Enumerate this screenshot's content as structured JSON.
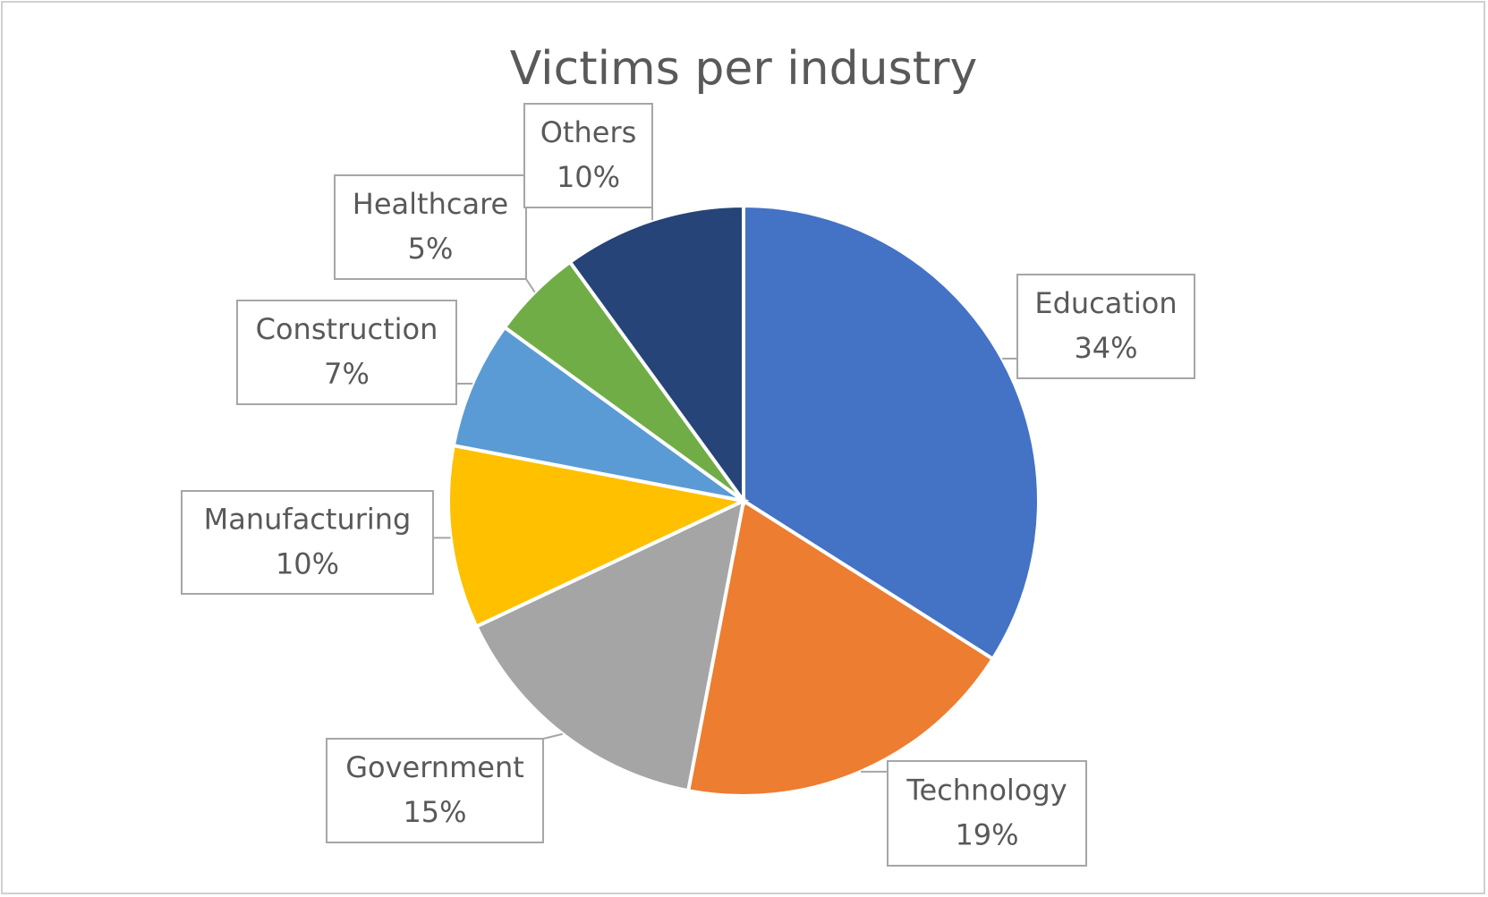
{
  "chart_data": {
    "type": "pie",
    "title": "Victims per industry",
    "categories": [
      "Education",
      "Technology",
      "Government",
      "Manufacturing",
      "Construction",
      "Healthcare",
      "Others"
    ],
    "values": [
      34,
      19,
      15,
      10,
      7,
      5,
      10
    ],
    "value_labels": [
      "34%",
      "19%",
      "15%",
      "10%",
      "7%",
      "5%",
      "10%"
    ],
    "colors": [
      "#4472c4",
      "#ed7d31",
      "#a5a5a5",
      "#ffc000",
      "#5b9bd5",
      "#70ad47",
      "#264478"
    ]
  }
}
